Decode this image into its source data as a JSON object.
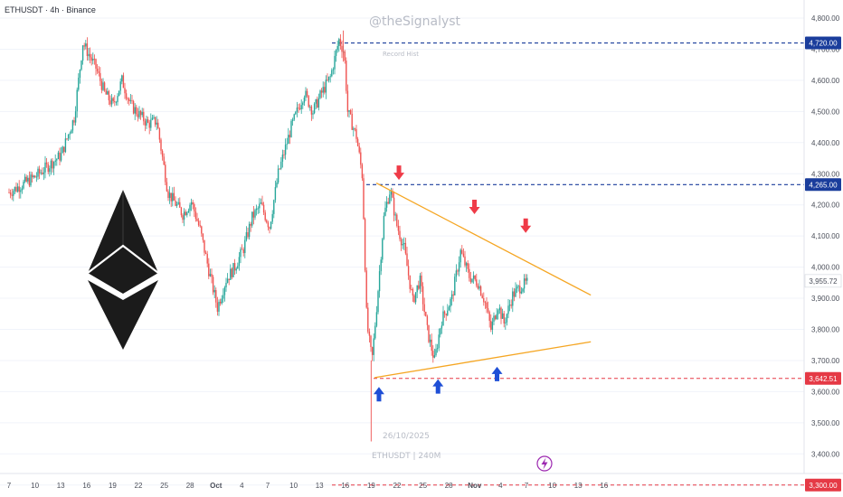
{
  "header": {
    "title": "ETHUSDT · 4h · Binance"
  },
  "watermark": {
    "brand": "@theSignalyst",
    "date": "26/10/2025",
    "symbol": "ETHUSDT | 240M",
    "level_note": "Record Hist"
  },
  "colors": {
    "up": "#26a69a",
    "down": "#ef5350",
    "trend": "#f5a623",
    "blue_level": "#1a3d9c",
    "red_level": "#e53945",
    "arrow_up": "#1f4fd6",
    "arrow_down": "#ef3b48"
  },
  "chart_data": {
    "type": "candlestick",
    "y_axis": {
      "min": 3300,
      "max": 4800,
      "ticks": [
        "4,800.00",
        "4,700.00",
        "4,600.00",
        "4,500.00",
        "4,400.00",
        "4,300.00",
        "4,200.00",
        "4,100.00",
        "4,000.00",
        "3,900.00",
        "3,800.00",
        "3,700.00",
        "3,600.00",
        "3,500.00",
        "3,400.00",
        "3,300.00"
      ]
    },
    "x_axis": {
      "ticks": [
        "7",
        "10",
        "13",
        "16",
        "19",
        "22",
        "25",
        "28",
        "Oct",
        "4",
        "7",
        "10",
        "13",
        "16",
        "19",
        "22",
        "25",
        "28",
        "Nov",
        "4",
        "7",
        "10",
        "13",
        "16"
      ]
    },
    "price_path": [
      {
        "t": 0,
        "p": 4240
      },
      {
        "t": 3,
        "p": 4290
      },
      {
        "t": 6,
        "p": 4360
      },
      {
        "t": 7.5,
        "p": 4480
      },
      {
        "t": 8.5,
        "p": 4720
      },
      {
        "t": 10,
        "p": 4640
      },
      {
        "t": 11,
        "p": 4560
      },
      {
        "t": 12,
        "p": 4520
      },
      {
        "t": 13,
        "p": 4600
      },
      {
        "t": 14,
        "p": 4520
      },
      {
        "t": 16,
        "p": 4460
      },
      {
        "t": 17,
        "p": 4470
      },
      {
        "t": 18.3,
        "p": 4240
      },
      {
        "t": 20,
        "p": 4170
      },
      {
        "t": 21,
        "p": 4210
      },
      {
        "t": 22,
        "p": 4120
      },
      {
        "t": 23,
        "p": 3990
      },
      {
        "t": 24,
        "p": 3870
      },
      {
        "t": 25,
        "p": 3960
      },
      {
        "t": 26,
        "p": 4000
      },
      {
        "t": 27,
        "p": 4060
      },
      {
        "t": 28,
        "p": 4160
      },
      {
        "t": 29,
        "p": 4200
      },
      {
        "t": 30,
        "p": 4130
      },
      {
        "t": 31,
        "p": 4300
      },
      {
        "t": 32.5,
        "p": 4450
      },
      {
        "t": 34,
        "p": 4560
      },
      {
        "t": 35,
        "p": 4500
      },
      {
        "t": 36,
        "p": 4560
      },
      {
        "t": 37,
        "p": 4610
      },
      {
        "t": 38,
        "p": 4730
      },
      {
        "t": 38.6,
        "p": 4690
      },
      {
        "t": 39,
        "p": 4500
      },
      {
        "t": 40,
        "p": 4420
      },
      {
        "t": 40.7,
        "p": 4290
      },
      {
        "t": 41.2,
        "p": 3820
      },
      {
        "t": 41.8,
        "p": 3700
      },
      {
        "t": 42.3,
        "p": 3860
      },
      {
        "t": 43.2,
        "p": 4170
      },
      {
        "t": 43.9,
        "p": 4250
      },
      {
        "t": 44.6,
        "p": 4140
      },
      {
        "t": 45.5,
        "p": 4060
      },
      {
        "t": 46.5,
        "p": 3890
      },
      {
        "t": 47.3,
        "p": 3960
      },
      {
        "t": 48.2,
        "p": 3790
      },
      {
        "t": 49.0,
        "p": 3700
      },
      {
        "t": 49.8,
        "p": 3830
      },
      {
        "t": 51,
        "p": 3900
      },
      {
        "t": 52,
        "p": 4050
      },
      {
        "t": 53,
        "p": 3970
      },
      {
        "t": 54,
        "p": 3950
      },
      {
        "t": 54.8,
        "p": 3890
      },
      {
        "t": 55.5,
        "p": 3800
      },
      {
        "t": 56.3,
        "p": 3880
      },
      {
        "t": 57,
        "p": 3820
      },
      {
        "t": 58,
        "p": 3910
      },
      {
        "t": 59,
        "p": 3940
      },
      {
        "t": 59.8,
        "p": 3950
      }
    ],
    "levels": [
      {
        "price": 4720,
        "label": "4,720.00",
        "style": "dashed",
        "color": "#1a3d9c"
      },
      {
        "price": 4265,
        "label": "4,265.00",
        "style": "dashed",
        "color": "#1a3d9c"
      },
      {
        "price": 3642.51,
        "label": "3,642.51",
        "style": "dashed",
        "color": "#e53945"
      },
      {
        "price": 3300,
        "label": "3,300.00",
        "style": "dashed",
        "color": "#e53945"
      }
    ],
    "last_price": {
      "price": 3955.72,
      "label": "3,955.72"
    },
    "trendlines": [
      {
        "from": {
          "t": 42.3,
          "p": 4270
        },
        "to": {
          "t": 67,
          "p": 3910
        }
      },
      {
        "from": {
          "t": 42.1,
          "p": 3645
        },
        "to": {
          "t": 67,
          "p": 3760
        }
      }
    ],
    "down_arrows": [
      {
        "t": 44.9,
        "p": 4280
      },
      {
        "t": 53.6,
        "p": 4170
      },
      {
        "t": 59.5,
        "p": 4110
      }
    ],
    "up_arrows": [
      {
        "t": 42.6,
        "p": 3615
      },
      {
        "t": 49.4,
        "p": 3640
      },
      {
        "t": 56.2,
        "p": 3680
      }
    ]
  }
}
